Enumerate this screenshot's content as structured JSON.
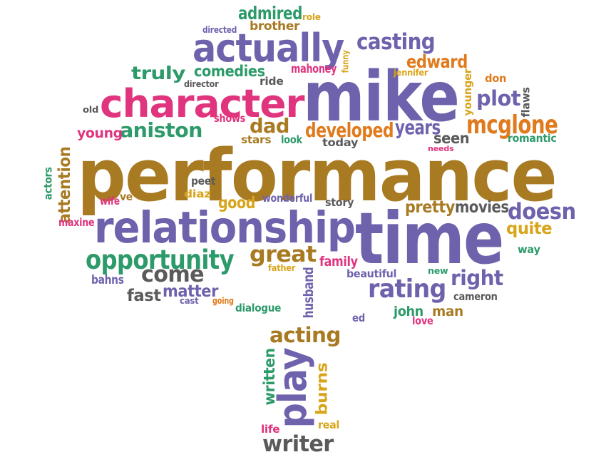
{
  "palette": {
    "purple": "#6e62ad",
    "gold": "#a87a22",
    "pink": "#e0347e",
    "green": "#2d9a6a",
    "orange": "#e07a1c",
    "gray": "#5a5a5a",
    "yellow": "#d8a41a"
  },
  "words": [
    {
      "text": "performance",
      "color": "gold"
    },
    {
      "text": "mike",
      "color": "purple"
    },
    {
      "text": "time",
      "color": "purple"
    },
    {
      "text": "relationship",
      "color": "purple"
    },
    {
      "text": "character",
      "color": "pink"
    },
    {
      "text": "actually",
      "color": "purple"
    },
    {
      "text": "opportunity",
      "color": "green"
    },
    {
      "text": "mcglone",
      "color": "orange"
    },
    {
      "text": "doesn",
      "color": "purple"
    },
    {
      "text": "rating",
      "color": "purple"
    },
    {
      "text": "great",
      "color": "gold"
    },
    {
      "text": "come",
      "color": "gray"
    },
    {
      "text": "acting",
      "color": "gold"
    },
    {
      "text": "play",
      "color": "purple"
    },
    {
      "text": "writer",
      "color": "gray"
    },
    {
      "text": "casting",
      "color": "purple"
    },
    {
      "text": "aniston",
      "color": "green"
    },
    {
      "text": "developed",
      "color": "orange"
    },
    {
      "text": "plot",
      "color": "purple"
    },
    {
      "text": "right",
      "color": "purple"
    },
    {
      "text": "dad",
      "color": "gold"
    },
    {
      "text": "years",
      "color": "purple"
    },
    {
      "text": "edward",
      "color": "orange"
    },
    {
      "text": "seen",
      "color": "gray"
    },
    {
      "text": "pretty",
      "color": "gold"
    },
    {
      "text": "movies",
      "color": "gray"
    },
    {
      "text": "quite",
      "color": "yellow"
    },
    {
      "text": "truly",
      "color": "green"
    },
    {
      "text": "comedies",
      "color": "green"
    },
    {
      "text": "admired",
      "color": "green"
    },
    {
      "text": "brother",
      "color": "gold"
    },
    {
      "text": "young",
      "color": "pink"
    },
    {
      "text": "good",
      "color": "yellow"
    },
    {
      "text": "fast",
      "color": "gray"
    },
    {
      "text": "matter",
      "color": "purple"
    },
    {
      "text": "attention",
      "color": "gold"
    },
    {
      "text": "written",
      "color": "green"
    },
    {
      "text": "burns",
      "color": "yellow"
    },
    {
      "text": "john",
      "color": "green"
    },
    {
      "text": "man",
      "color": "gold"
    },
    {
      "text": "dialogue",
      "color": "green"
    },
    {
      "text": "family",
      "color": "pink"
    },
    {
      "text": "husband",
      "color": "purple"
    },
    {
      "text": "mahoney",
      "color": "pink"
    },
    {
      "text": "stars",
      "color": "gold"
    },
    {
      "text": "look",
      "color": "green"
    },
    {
      "text": "today",
      "color": "gray"
    },
    {
      "text": "needs",
      "color": "pink"
    },
    {
      "text": "romantic",
      "color": "green"
    },
    {
      "text": "wonderful",
      "color": "purple"
    },
    {
      "text": "story",
      "color": "gray"
    },
    {
      "text": "peet",
      "color": "gray"
    },
    {
      "text": "diaz",
      "color": "yellow"
    },
    {
      "text": "wife",
      "color": "pink"
    },
    {
      "text": "ve",
      "color": "gold"
    },
    {
      "text": "actors",
      "color": "green"
    },
    {
      "text": "maxine",
      "color": "pink"
    },
    {
      "text": "bahns",
      "color": "purple"
    },
    {
      "text": "cast",
      "color": "purple"
    },
    {
      "text": "going",
      "color": "orange"
    },
    {
      "text": "father",
      "color": "yellow"
    },
    {
      "text": "beautiful",
      "color": "purple"
    },
    {
      "text": "new",
      "color": "green"
    },
    {
      "text": "cameron",
      "color": "gray"
    },
    {
      "text": "way",
      "color": "green"
    },
    {
      "text": "ed",
      "color": "purple"
    },
    {
      "text": "love",
      "color": "pink"
    },
    {
      "text": "real",
      "color": "yellow"
    },
    {
      "text": "life",
      "color": "pink"
    },
    {
      "text": "shows",
      "color": "pink"
    },
    {
      "text": "ride",
      "color": "gray"
    },
    {
      "text": "director",
      "color": "gray"
    },
    {
      "text": "directed",
      "color": "purple"
    },
    {
      "text": "role",
      "color": "yellow"
    },
    {
      "text": "funny",
      "color": "yellow"
    },
    {
      "text": "jennifer",
      "color": "yellow"
    },
    {
      "text": "younger",
      "color": "yellow"
    },
    {
      "text": "don",
      "color": "orange"
    },
    {
      "text": "flaws",
      "color": "gray"
    },
    {
      "text": "old",
      "color": "gray"
    }
  ]
}
